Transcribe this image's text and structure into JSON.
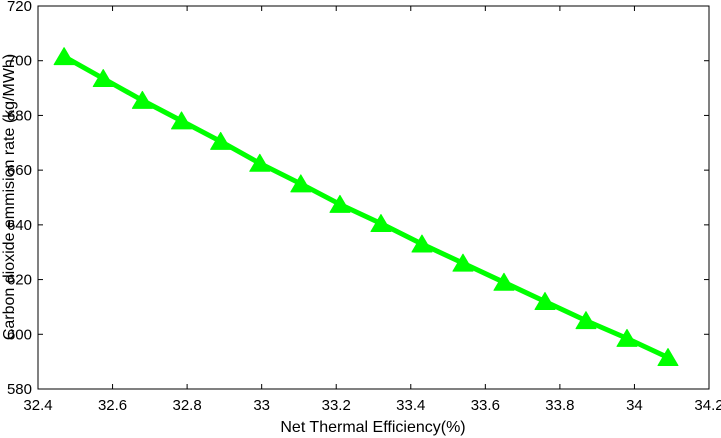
{
  "chart_data": {
    "type": "line",
    "xlabel": "Net Thermal Efficiency(%)",
    "ylabel": "Carbon dioxide emmision rate (kg/MWh)",
    "xlim": [
      32.4,
      34.2
    ],
    "ylim": [
      580,
      720
    ],
    "xticks": [
      32.4,
      32.6,
      32.8,
      33,
      33.2,
      33.4,
      33.6,
      33.8,
      34,
      34.2
    ],
    "xtick_labels": [
      "32.4",
      "32.6",
      "32.8",
      "33",
      "33.2",
      "33.4",
      "33.6",
      "33.8",
      "34",
      "34.2"
    ],
    "yticks": [
      580,
      600,
      620,
      640,
      660,
      680,
      700,
      720
    ],
    "ytick_labels": [
      "580",
      "600",
      "620",
      "640",
      "660",
      "680",
      "700",
      "720"
    ],
    "grid": false,
    "series": [
      {
        "color": "#00ff00",
        "marker": "triangle",
        "x": [
          32.47,
          32.575,
          32.68,
          32.785,
          32.89,
          32.995,
          33.105,
          33.21,
          33.32,
          33.43,
          33.54,
          33.65,
          33.76,
          33.87,
          33.98,
          34.09
        ],
        "y": [
          701.5,
          693.5,
          685.5,
          678,
          670.5,
          662.5,
          655,
          647.5,
          640.5,
          633,
          626,
          619,
          612,
          605,
          598.5,
          591.5
        ]
      }
    ]
  }
}
